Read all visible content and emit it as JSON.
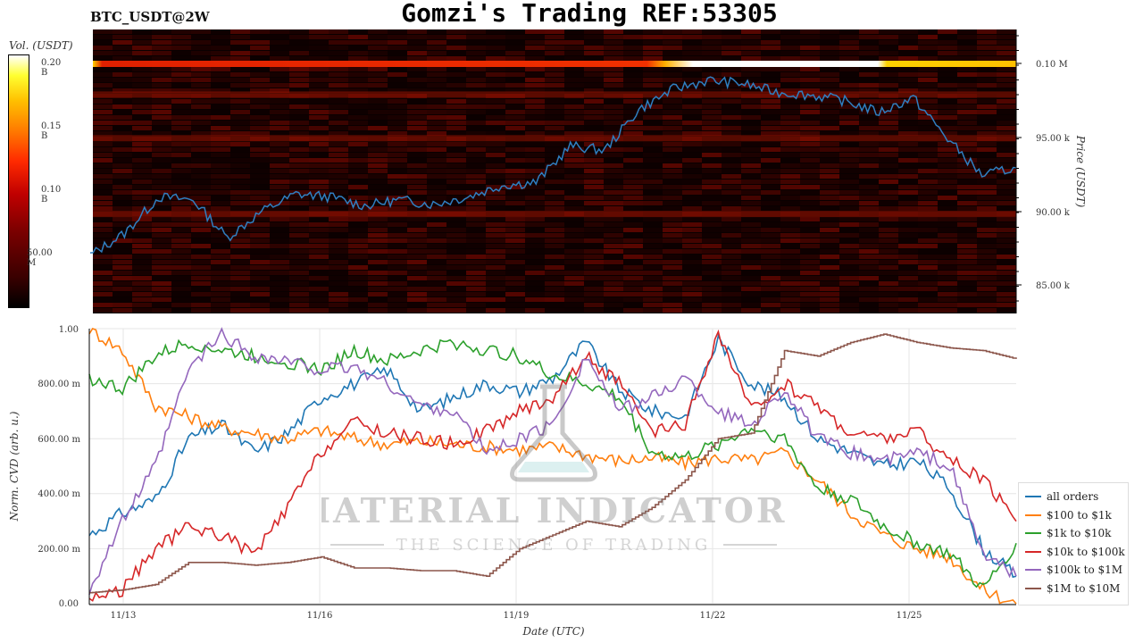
{
  "header": {
    "pair": "BTC_USDT@2W",
    "title": "Gomzi's Trading REF:53305"
  },
  "colorbar": {
    "label": "Vol. (USDT)",
    "ticks": [
      "0.20 B",
      "0.15 B",
      "0.10 B",
      "50.00 M"
    ]
  },
  "top_panel": {
    "ylabel": "Price (USDT)",
    "ticks": [
      "0.10 M",
      "95.00 k",
      "90.00 k",
      "85.00 k"
    ]
  },
  "bottom_panel": {
    "ylabel": "Norm. CVD (arb. u.)",
    "xlabel": "Date (UTC)",
    "yticks": [
      "1.00",
      "800.00 m",
      "600.00 m",
      "400.00 m",
      "200.00 m",
      "0.00"
    ],
    "xticks": [
      "11/13",
      "11/16",
      "11/19",
      "11/22",
      "11/25"
    ]
  },
  "watermark": {
    "line1": "MATERIAL INDICATORS",
    "line2": "THE SCIENCE OF TRADING"
  },
  "colors": {
    "price": "#2f7fc1",
    "all_orders": "#1f77b4",
    "usd100_1k": "#ff7f0e",
    "usd1k_10k": "#2ca02c",
    "usd10k_100k": "#d62728",
    "usd100k_1m": "#9467bd",
    "usd1m_10m": "#8c564b"
  },
  "chart_data": [
    {
      "type": "heatmap",
      "title": "",
      "x": [
        "11/12 18:00",
        "11/13 12:00",
        "11/14 00:00",
        "11/14 12:00",
        "11/15 00:00",
        "11/15 12:00",
        "11/16 00:00",
        "11/16 12:00",
        "11/17 00:00",
        "11/17 12:00",
        "11/18 00:00",
        "11/18 12:00",
        "11/19 00:00",
        "11/19 12:00",
        "11/20 00:00",
        "11/20 12:00",
        "11/21 00:00",
        "11/21 12:00",
        "11/22 00:00",
        "11/22 12:00",
        "11/23 00:00",
        "11/23 12:00",
        "11/24 00:00",
        "11/24 12:00",
        "11/25 00:00",
        "11/25 12:00",
        "11/26 00:00",
        "11/26 06:00"
      ],
      "price": [
        87000,
        88500,
        91000,
        90800,
        88200,
        90000,
        91200,
        91000,
        90400,
        90800,
        90500,
        91000,
        91800,
        92000,
        94500,
        94200,
        97000,
        98400,
        99000,
        98800,
        98200,
        98000,
        97600,
        96800,
        97800,
        95000,
        92500,
        93000
      ],
      "ylim": [
        83000,
        102500
      ],
      "ylabel": "Price (USDT)",
      "colorbar_label": "Vol. (USDT)",
      "wall_levels": [
        {
          "price": 100000,
          "intensity": 0.55,
          "peak_intensity": 1.0
        },
        {
          "price": 98000,
          "intensity": 0.3
        },
        {
          "price": 95000,
          "intensity": 0.3
        },
        {
          "price": 89800,
          "intensity": 0.35
        }
      ]
    },
    {
      "type": "line",
      "x": [
        "11/12 18:00",
        "11/13 00:00",
        "11/13 12:00",
        "11/14 00:00",
        "11/14 12:00",
        "11/15 00:00",
        "11/15 12:00",
        "11/16 00:00",
        "11/16 12:00",
        "11/17 00:00",
        "11/17 12:00",
        "11/18 00:00",
        "11/18 12:00",
        "11/19 00:00",
        "11/19 12:00",
        "11/20 00:00",
        "11/20 12:00",
        "11/21 00:00",
        "11/21 12:00",
        "11/22 00:00",
        "11/22 12:00",
        "11/23 00:00",
        "11/23 12:00",
        "11/24 00:00",
        "11/24 12:00",
        "11/25 00:00",
        "11/25 12:00",
        "11/26 00:00",
        "11/26 06:00"
      ],
      "xlabel": "Date (UTC)",
      "ylabel": "Norm. CVD (arb. u.)",
      "ylim": [
        0,
        1
      ],
      "legend": "right",
      "series": [
        {
          "name": "all orders",
          "color_key": "all_orders",
          "values": [
            0.25,
            0.33,
            0.38,
            0.6,
            0.65,
            0.55,
            0.62,
            0.75,
            0.8,
            0.85,
            0.7,
            0.75,
            0.8,
            0.77,
            0.82,
            0.95,
            0.78,
            0.7,
            0.68,
            0.96,
            0.8,
            0.75,
            0.6,
            0.55,
            0.5,
            0.52,
            0.42,
            0.2,
            0.1
          ]
        },
        {
          "name": "$100 to $1k",
          "color_key": "usd100_1k",
          "values": [
            1.0,
            0.92,
            0.72,
            0.68,
            0.64,
            0.62,
            0.6,
            0.63,
            0.6,
            0.58,
            0.59,
            0.58,
            0.57,
            0.56,
            0.57,
            0.54,
            0.52,
            0.53,
            0.51,
            0.53,
            0.52,
            0.55,
            0.45,
            0.33,
            0.25,
            0.2,
            0.17,
            0.05,
            0.0
          ]
        },
        {
          "name": "$1k to $10k",
          "color_key": "usd1k_10k",
          "values": [
            0.82,
            0.78,
            0.9,
            0.95,
            0.92,
            0.9,
            0.88,
            0.85,
            0.92,
            0.88,
            0.92,
            0.95,
            0.92,
            0.9,
            0.83,
            0.8,
            0.75,
            0.55,
            0.53,
            0.58,
            0.64,
            0.6,
            0.42,
            0.38,
            0.28,
            0.22,
            0.18,
            0.05,
            0.22
          ]
        },
        {
          "name": "$10k to $100k",
          "color_key": "usd10k_100k",
          "values": [
            0.02,
            0.05,
            0.2,
            0.28,
            0.25,
            0.18,
            0.35,
            0.55,
            0.66,
            0.62,
            0.6,
            0.58,
            0.63,
            0.7,
            0.75,
            0.9,
            0.8,
            0.62,
            0.65,
            0.98,
            0.7,
            0.8,
            0.72,
            0.62,
            0.6,
            0.63,
            0.52,
            0.45,
            0.3
          ]
        },
        {
          "name": "$100k to $1M",
          "color_key": "usd100k_1m",
          "values": [
            0.05,
            0.3,
            0.5,
            0.85,
            0.98,
            0.9,
            0.88,
            0.85,
            0.86,
            0.8,
            0.72,
            0.7,
            0.55,
            0.6,
            0.65,
            0.9,
            0.7,
            0.75,
            0.82,
            0.7,
            0.65,
            0.78,
            0.6,
            0.55,
            0.52,
            0.55,
            0.5,
            0.18,
            0.1
          ]
        },
        {
          "name": "$1M to $10M",
          "color_key": "usd1m_10m",
          "values": [
            0.04,
            0.05,
            0.07,
            0.15,
            0.15,
            0.14,
            0.15,
            0.17,
            0.13,
            0.13,
            0.12,
            0.12,
            0.1,
            0.2,
            0.25,
            0.3,
            0.28,
            0.35,
            0.45,
            0.6,
            0.62,
            0.92,
            0.9,
            0.95,
            0.98,
            0.95,
            0.93,
            0.92,
            0.89
          ]
        }
      ]
    }
  ]
}
